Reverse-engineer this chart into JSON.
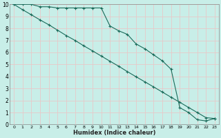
{
  "xlabel": "Humidex (Indice chaleur)",
  "bg_color": "#c8eee8",
  "grid_color": "#e8c8c8",
  "line_color": "#1a6b5a",
  "xlim": [
    -0.5,
    23.5
  ],
  "ylim": [
    0,
    10
  ],
  "line1_x": [
    0,
    1,
    2,
    3,
    4,
    5,
    6,
    7,
    8,
    9,
    10,
    11,
    12,
    13,
    14,
    15,
    16,
    17,
    18,
    19,
    20,
    21,
    22,
    23
  ],
  "line1_y": [
    10,
    9.55,
    9.13,
    8.7,
    8.3,
    7.85,
    7.4,
    7.0,
    6.55,
    6.13,
    5.7,
    5.27,
    4.85,
    4.4,
    3.97,
    3.55,
    3.13,
    2.7,
    2.27,
    1.85,
    1.42,
    1.0,
    0.57,
    0.5
  ],
  "line2_x": [
    0,
    1,
    2,
    3,
    4,
    5,
    6,
    7,
    8,
    9,
    10,
    11,
    12,
    13,
    14,
    15,
    16,
    17,
    18,
    19,
    20,
    21,
    22,
    23
  ],
  "line2_y": [
    10,
    10,
    10,
    9.8,
    9.8,
    9.7,
    9.7,
    9.7,
    9.7,
    9.7,
    9.7,
    8.2,
    7.8,
    7.5,
    6.7,
    6.3,
    5.8,
    5.3,
    4.6,
    1.4,
    1.0,
    0.4,
    0.3,
    0.5
  ],
  "xtick_labels": [
    "0",
    "1",
    "2",
    "3",
    "4",
    "5",
    "6",
    "7",
    "8",
    "9",
    "10",
    "11",
    "12",
    "13",
    "14",
    "15",
    "16",
    "17",
    "18",
    "19",
    "20",
    "21",
    "22",
    "23"
  ],
  "ytick_labels": [
    "0",
    "1",
    "2",
    "3",
    "4",
    "5",
    "6",
    "7",
    "8",
    "9",
    "10"
  ]
}
